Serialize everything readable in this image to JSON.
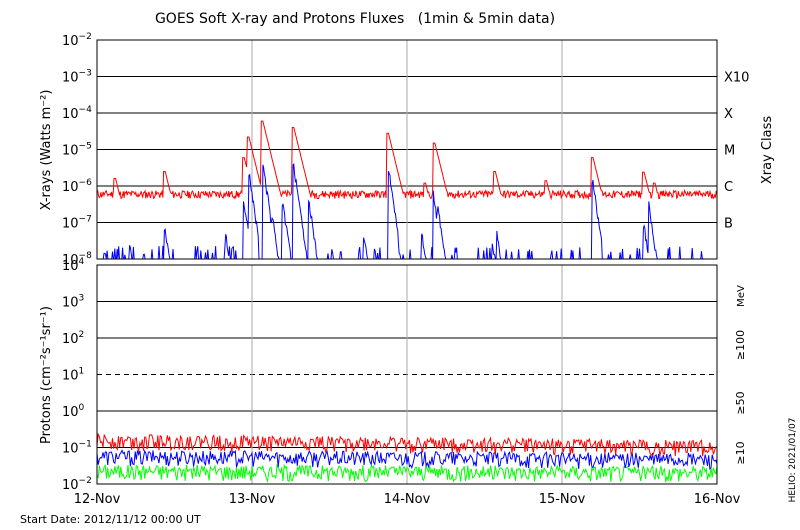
{
  "title": "GOES Soft X-ray and Protons Fluxes   (1min & 5min data)",
  "start_date": "Start Date: 2012/11/12 00:00 UT",
  "credit": "HELIO: 2021/01/07",
  "colors": {
    "red": "#ff0000",
    "blue": "#0000ff",
    "green": "#00ff00",
    "grid": "#aaaaaa"
  },
  "chart_data": [
    {
      "type": "line",
      "title": "GOES Soft X-ray and Protons Fluxes   (1min & 5min data)",
      "ylabel": "X-rays (Watts m⁻²)",
      "y_scale": "log",
      "ylim": [
        1e-08,
        0.01
      ],
      "x_ticks": [
        "12-Nov",
        "13-Nov",
        "14-Nov",
        "15-Nov",
        "16-Nov"
      ],
      "x_range_days": [
        12,
        16
      ],
      "y_ticks": [
        {
          "base": "10",
          "exp": "−2",
          "value": 0.01
        },
        {
          "base": "10",
          "exp": "−3",
          "value": 0.001
        },
        {
          "base": "10",
          "exp": "−4",
          "value": 0.0001
        },
        {
          "base": "10",
          "exp": "−5",
          "value": 1e-05
        },
        {
          "base": "10",
          "exp": "−6",
          "value": 1e-06
        },
        {
          "base": "10",
          "exp": "−7",
          "value": 1e-07
        },
        {
          "base": "10",
          "exp": "−8",
          "value": 1e-08
        }
      ],
      "right_axis_label": "Xray Class",
      "xray_classes": [
        {
          "label": "X10",
          "value": 0.001
        },
        {
          "label": "X",
          "value": 0.0001
        },
        {
          "label": "M",
          "value": 1e-05
        },
        {
          "label": "C",
          "value": 1e-06
        },
        {
          "label": "B",
          "value": 1e-07
        }
      ],
      "series": [
        {
          "color": "#ff0000",
          "baseline": 6e-07,
          "peaks": [
            {
              "day": 12.12,
              "value": 1.6e-06
            },
            {
              "day": 12.44,
              "value": 2.5e-06
            },
            {
              "day": 12.95,
              "value": 6e-06
            },
            {
              "day": 12.98,
              "value": 2.2e-05
            },
            {
              "day": 13.07,
              "value": 6e-05
            },
            {
              "day": 13.1,
              "value": 3e-06
            },
            {
              "day": 13.27,
              "value": 4e-05
            },
            {
              "day": 13.33,
              "value": 1.6e-06
            },
            {
              "day": 13.88,
              "value": 2.8e-05
            },
            {
              "day": 13.91,
              "value": 4e-06
            },
            {
              "day": 14.12,
              "value": 1.2e-06
            },
            {
              "day": 14.18,
              "value": 1.5e-05
            },
            {
              "day": 14.57,
              "value": 2.5e-06
            },
            {
              "day": 14.9,
              "value": 1.4e-06
            },
            {
              "day": 15.2,
              "value": 6e-06
            },
            {
              "day": 15.53,
              "value": 2.4e-06
            },
            {
              "day": 15.6,
              "value": 1.2e-06
            }
          ]
        },
        {
          "color": "#0000ff",
          "baseline": 1e-08,
          "peaks": [
            {
              "day": 12.05,
              "value": 2e-08
            },
            {
              "day": 12.21,
              "value": 3e-08
            },
            {
              "day": 12.3,
              "value": 2e-08
            },
            {
              "day": 12.44,
              "value": 8e-08
            },
            {
              "day": 12.83,
              "value": 6e-08
            },
            {
              "day": 12.95,
              "value": 4e-07
            },
            {
              "day": 12.98,
              "value": 3e-06
            },
            {
              "day": 13.07,
              "value": 5e-06
            },
            {
              "day": 13.13,
              "value": 2e-07
            },
            {
              "day": 13.2,
              "value": 4e-07
            },
            {
              "day": 13.27,
              "value": 4e-06
            },
            {
              "day": 13.3,
              "value": 5e-07
            },
            {
              "day": 13.37,
              "value": 4e-07
            },
            {
              "day": 13.72,
              "value": 6e-08
            },
            {
              "day": 13.88,
              "value": 4e-06
            },
            {
              "day": 13.91,
              "value": 3e-07
            },
            {
              "day": 14.1,
              "value": 5e-08
            },
            {
              "day": 14.17,
              "value": 8e-07
            },
            {
              "day": 14.2,
              "value": 3e-07
            },
            {
              "day": 14.55,
              "value": 4e-08
            },
            {
              "day": 14.58,
              "value": 6e-08
            },
            {
              "day": 15.2,
              "value": 1.5e-06
            },
            {
              "day": 15.53,
              "value": 1e-07
            },
            {
              "day": 15.56,
              "value": 4e-07
            },
            {
              "day": 15.9,
              "value": 2e-08
            }
          ]
        }
      ]
    },
    {
      "type": "line",
      "ylabel": "Protons (cm⁻²s⁻¹sr⁻¹)",
      "y_scale": "log",
      "ylim": [
        0.01,
        10000
      ],
      "x_ticks": [
        "12-Nov",
        "13-Nov",
        "14-Nov",
        "15-Nov",
        "16-Nov"
      ],
      "x_range_days": [
        12,
        16
      ],
      "y_ticks": [
        {
          "base": "10",
          "exp": "4",
          "value": 10000
        },
        {
          "base": "10",
          "exp": "3",
          "value": 1000
        },
        {
          "base": "10",
          "exp": "2",
          "value": 100
        },
        {
          "base": "10",
          "exp": "1",
          "value": 10
        },
        {
          "base": "10",
          "exp": "0",
          "value": 1
        },
        {
          "base": "10",
          "exp": "−1",
          "value": 0.1
        },
        {
          "base": "10",
          "exp": "−2",
          "value": 0.01
        }
      ],
      "threshold": 10,
      "energy_unit": "MeV",
      "series": [
        {
          "name": "≥100",
          "color": "#00ff00",
          "level_start": 0.022,
          "level_end": 0.02
        },
        {
          "name": "≥50",
          "color": "#0000ff",
          "level_start": 0.055,
          "level_end": 0.045
        },
        {
          "name": "≥10",
          "color": "#ff0000",
          "level_start": 0.15,
          "level_end": 0.1
        }
      ]
    }
  ]
}
